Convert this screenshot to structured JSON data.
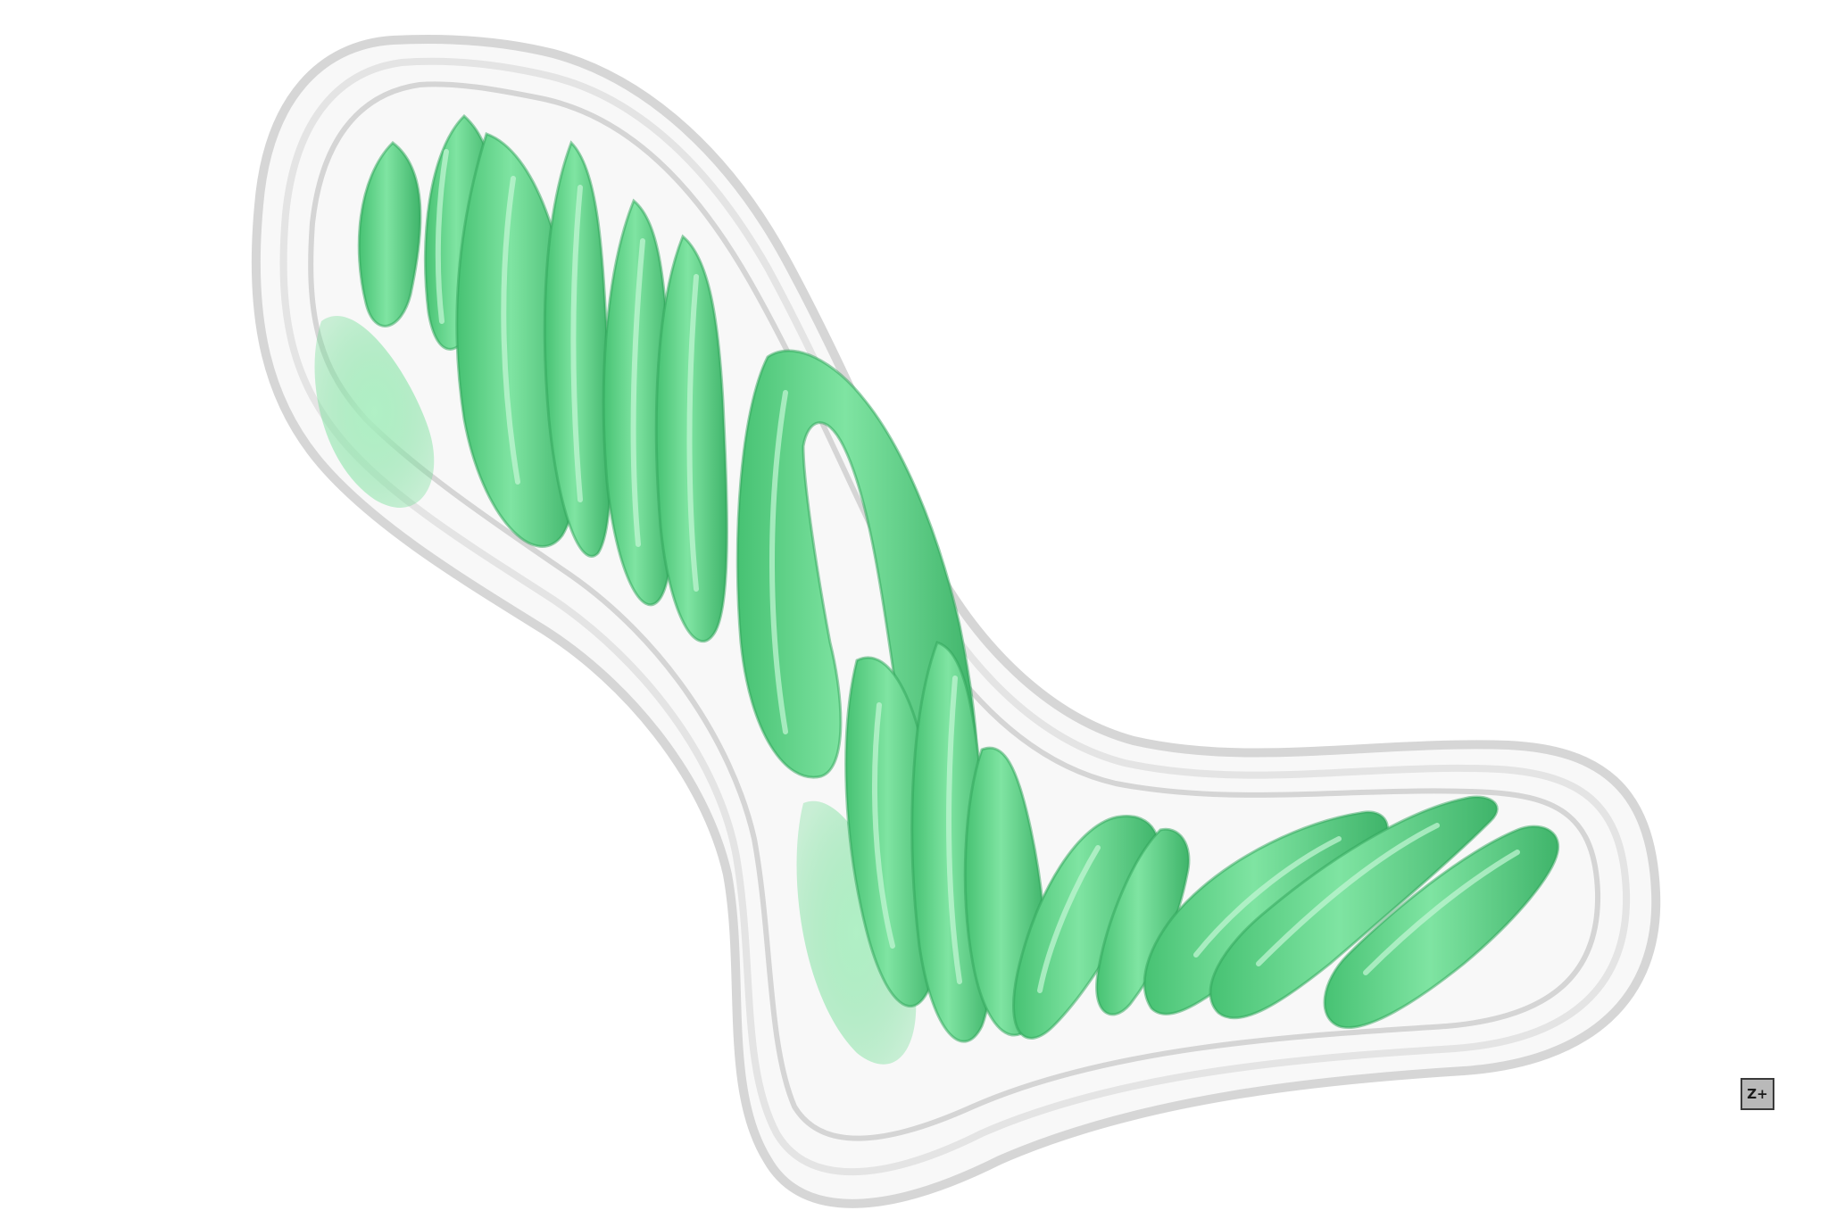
{
  "viewer": {
    "background_color": "#ffffff",
    "membrane_color": "#e6e6e6",
    "structure_color": "#6fdc93",
    "structure_shade_color": "#38b865",
    "structure_highlight_color": "#a9f0c0",
    "axis_button": {
      "label": "Z+",
      "icon": "axis-orientation-icon"
    }
  }
}
